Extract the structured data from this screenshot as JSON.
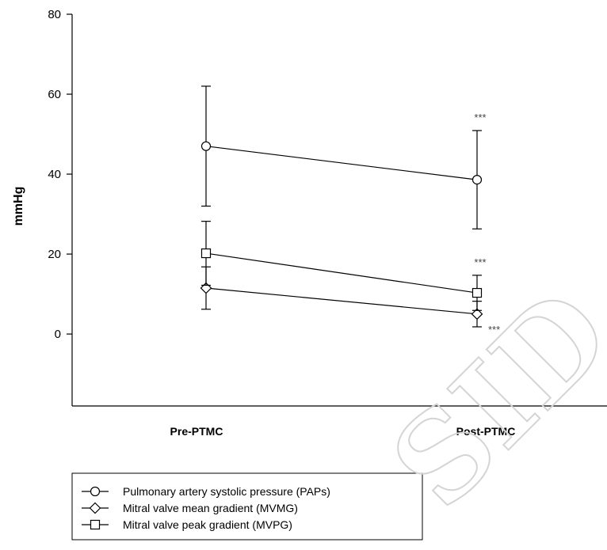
{
  "chart_data": {
    "type": "line",
    "categories": [
      "Pre-PTMC",
      "Post-PTMC"
    ],
    "ylabel": "mmHg",
    "xlabel": "",
    "title": "",
    "ylim": [
      -18,
      80
    ],
    "yticks": [
      0,
      20,
      40,
      60,
      80
    ],
    "grid": false,
    "legend_position": "bottom-left",
    "series": [
      {
        "name": "Pulmonary artery systolic pressure (PAPs)",
        "marker": "circle",
        "values": [
          47,
          38.6
        ],
        "error": [
          15,
          12.3
        ],
        "annotations": [
          "",
          "***"
        ]
      },
      {
        "name": "Mitral valve mean gradient (MVMG)",
        "marker": "diamond",
        "values": [
          11.5,
          5.0
        ],
        "error": [
          5.3,
          3.2
        ],
        "annotations": [
          "",
          "***"
        ]
      },
      {
        "name": "Mitral valve peak gradient (MVPG)",
        "marker": "square",
        "values": [
          20.2,
          10.3
        ],
        "error": [
          8.0,
          4.4
        ],
        "annotations": [
          "",
          "***"
        ]
      }
    ]
  },
  "watermark": {
    "text": "SID"
  }
}
